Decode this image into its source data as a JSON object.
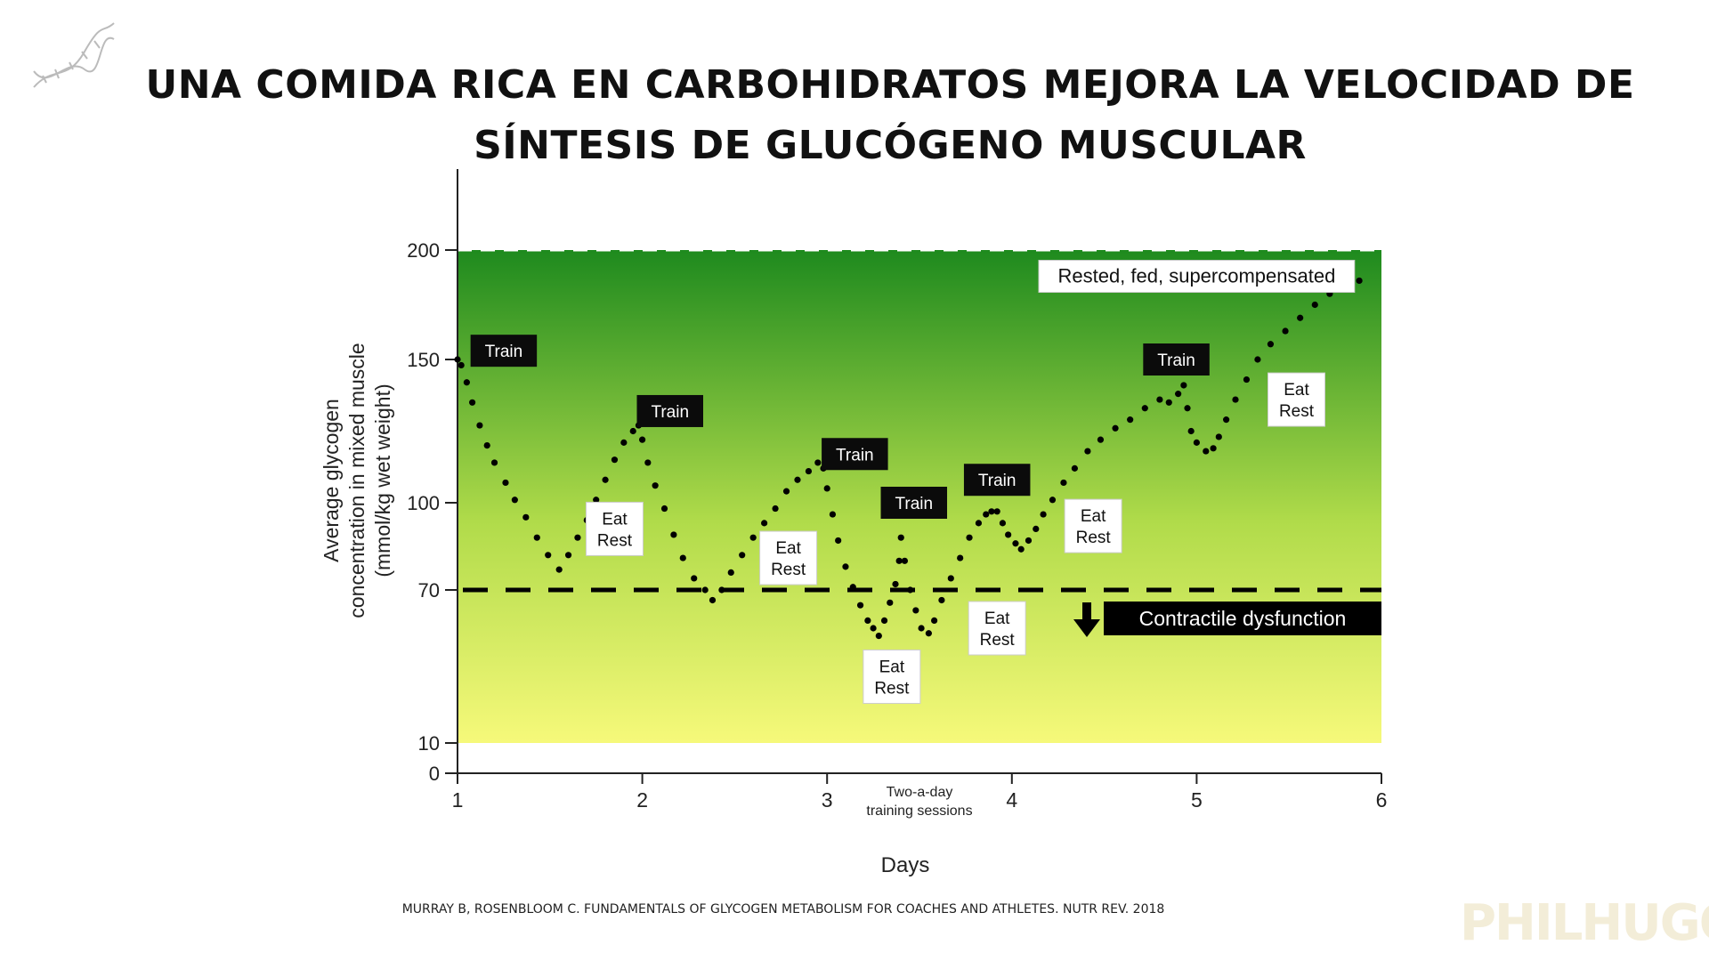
{
  "header": {
    "title_line1": "UNA COMIDA RICA EN CARBOHIDRATOS MEJORA LA VELOCIDAD DE",
    "title_line2": "SÍNTESIS DE GLUCÓGENO MUSCULAR",
    "logo_icon": "dna-icon"
  },
  "footer": {
    "citation": "MURRAY B, ROSENBLOOM C. FUNDAMENTALS OF GLYCOGEN METABOLISM FOR COACHES AND ATHLETES. NUTR REV. 2018",
    "watermark": "PHILHUGO"
  },
  "chart_data": {
    "type": "scatter",
    "title": "",
    "xlabel": "Days",
    "ylabel_lines": [
      "Average glycogen",
      "concentration in mixed muscle",
      "(mmol/kg wet weight)"
    ],
    "xlim": [
      1,
      6
    ],
    "x_ticks": [
      1,
      2,
      3,
      4,
      5,
      6
    ],
    "y_ticks": [
      0,
      10,
      70,
      100,
      150,
      200
    ],
    "axis_scale_note": "non-linear y axis",
    "threshold": {
      "value": 70,
      "label": "Contractile dysfunction"
    },
    "top_line": {
      "value": 200
    },
    "x_annotation_lines": [
      "Two-a-day",
      "training sessions"
    ],
    "gradient_colors": {
      "top": "#1e8a1e",
      "bottom": "#f6f97a"
    },
    "series": [
      {
        "points": [
          [
            1.0,
            150
          ],
          [
            1.02,
            148
          ],
          [
            1.05,
            142
          ],
          [
            1.08,
            135
          ],
          [
            1.12,
            127
          ],
          [
            1.16,
            120
          ],
          [
            1.2,
            114
          ],
          [
            1.26,
            107
          ],
          [
            1.31,
            101
          ],
          [
            1.37,
            95
          ],
          [
            1.43,
            88
          ],
          [
            1.49,
            82
          ],
          [
            1.55,
            77
          ],
          [
            1.6,
            82
          ],
          [
            1.65,
            88
          ],
          [
            1.7,
            94
          ],
          [
            1.75,
            101
          ],
          [
            1.8,
            108
          ],
          [
            1.85,
            115
          ],
          [
            1.9,
            121
          ],
          [
            1.95,
            125
          ],
          [
            1.98,
            127
          ],
          [
            2.0,
            122
          ],
          [
            2.03,
            114
          ],
          [
            2.07,
            106
          ],
          [
            2.12,
            98
          ],
          [
            2.17,
            89
          ],
          [
            2.22,
            81
          ],
          [
            2.28,
            74
          ],
          [
            2.34,
            70
          ],
          [
            2.38,
            66
          ],
          [
            2.43,
            70
          ],
          [
            2.48,
            76
          ],
          [
            2.54,
            82
          ],
          [
            2.6,
            88
          ],
          [
            2.66,
            93
          ],
          [
            2.72,
            98
          ],
          [
            2.78,
            104
          ],
          [
            2.84,
            108
          ],
          [
            2.9,
            111
          ],
          [
            2.95,
            114
          ],
          [
            2.98,
            112
          ],
          [
            3.0,
            105
          ],
          [
            3.03,
            96
          ],
          [
            3.06,
            87
          ],
          [
            3.1,
            78
          ],
          [
            3.14,
            71
          ],
          [
            3.18,
            64
          ],
          [
            3.22,
            58
          ],
          [
            3.25,
            55
          ],
          [
            3.28,
            52
          ],
          [
            3.31,
            58
          ],
          [
            3.34,
            65
          ],
          [
            3.37,
            72
          ],
          [
            3.39,
            80
          ],
          [
            3.4,
            88
          ],
          [
            3.42,
            80
          ],
          [
            3.45,
            70
          ],
          [
            3.48,
            62
          ],
          [
            3.51,
            55
          ],
          [
            3.55,
            53
          ],
          [
            3.58,
            58
          ],
          [
            3.62,
            66
          ],
          [
            3.67,
            74
          ],
          [
            3.72,
            81
          ],
          [
            3.77,
            88
          ],
          [
            3.82,
            93
          ],
          [
            3.86,
            96
          ],
          [
            3.89,
            97
          ],
          [
            3.92,
            97
          ],
          [
            3.95,
            93
          ],
          [
            3.98,
            89
          ],
          [
            4.02,
            86
          ],
          [
            4.05,
            84
          ],
          [
            4.09,
            87
          ],
          [
            4.13,
            91
          ],
          [
            4.17,
            96
          ],
          [
            4.22,
            101
          ],
          [
            4.28,
            107
          ],
          [
            4.34,
            112
          ],
          [
            4.41,
            118
          ],
          [
            4.48,
            122
          ],
          [
            4.56,
            126
          ],
          [
            4.64,
            129
          ],
          [
            4.72,
            133
          ],
          [
            4.8,
            136
          ],
          [
            4.85,
            135
          ],
          [
            4.9,
            138
          ],
          [
            4.93,
            141
          ],
          [
            4.95,
            133
          ],
          [
            4.97,
            125
          ],
          [
            5.0,
            121
          ],
          [
            5.05,
            118
          ],
          [
            5.09,
            119
          ],
          [
            5.12,
            123
          ],
          [
            5.16,
            129
          ],
          [
            5.21,
            136
          ],
          [
            5.27,
            143
          ],
          [
            5.33,
            150
          ],
          [
            5.4,
            157
          ],
          [
            5.48,
            163
          ],
          [
            5.56,
            169
          ],
          [
            5.64,
            175
          ],
          [
            5.72,
            180
          ],
          [
            5.8,
            183
          ],
          [
            5.88,
            186
          ]
        ]
      }
    ],
    "annotations": [
      {
        "text": "Train",
        "style": "dark",
        "x": 1.25,
        "y": 154
      },
      {
        "text": "Train",
        "style": "dark",
        "x": 2.15,
        "y": 132
      },
      {
        "text": "Train",
        "style": "dark",
        "x": 3.15,
        "y": 117
      },
      {
        "text": "Train",
        "style": "dark",
        "x": 3.47,
        "y": 100
      },
      {
        "text": "Train",
        "style": "dark",
        "x": 3.92,
        "y": 108
      },
      {
        "text": "Train",
        "style": "dark",
        "x": 4.89,
        "y": 150
      },
      {
        "text": "Eat\nRest",
        "style": "light",
        "x": 1.85,
        "y": 91
      },
      {
        "text": "Eat\nRest",
        "style": "light",
        "x": 2.79,
        "y": 81
      },
      {
        "text": "Eat\nRest",
        "style": "light",
        "x": 3.35,
        "y": 36
      },
      {
        "text": "Eat\nRest",
        "style": "light",
        "x": 3.92,
        "y": 55
      },
      {
        "text": "Eat\nRest",
        "style": "light",
        "x": 4.44,
        "y": 92
      },
      {
        "text": "Eat\nRest",
        "style": "light",
        "x": 5.54,
        "y": 136
      },
      {
        "text": "Rested, fed, supercompensated",
        "style": "light",
        "x": 5.0,
        "y": 188
      }
    ]
  }
}
